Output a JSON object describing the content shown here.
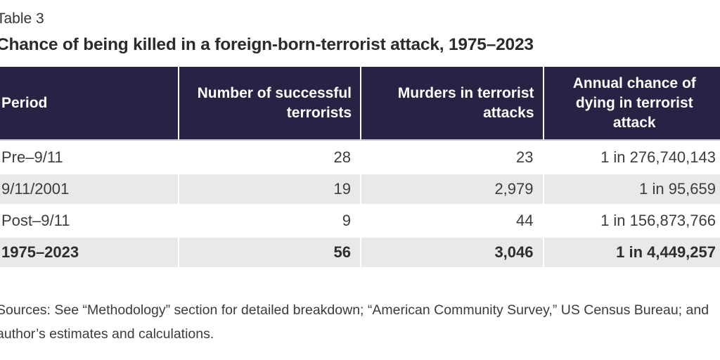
{
  "label": "Table 3",
  "title": "Chance of being killed in a foreign-born-terrorist attack, 1975–2023",
  "colors": {
    "header_bg": "#282345",
    "header_text": "#ffffff",
    "alt_row_bg": "#e9e9e9",
    "body_text": "#3c3c3c"
  },
  "chart_data": {
    "type": "table",
    "title": "Chance of being killed in a foreign-born-terrorist attack, 1975–2023",
    "columns": [
      "Period",
      "Number of successful terrorists",
      "Murders in terrorist attacks",
      "Annual chance of dying in terrorist attack"
    ],
    "rows": [
      [
        "Pre–9/11",
        "28",
        "23",
        "1 in 276,740,143"
      ],
      [
        "9/11/2001",
        "19",
        "2,979",
        "1 in 95,659"
      ],
      [
        "Post–9/11",
        "9",
        "44",
        "1 in 156,873,766"
      ],
      [
        "1975–2023",
        "56",
        "3,046",
        "1 in 4,449,257"
      ]
    ],
    "total_row": [
      "1975–2023",
      "56",
      "3,046",
      "1 in 4,449,257"
    ]
  },
  "sources_note": "Sources: See “Methodology” section for detailed breakdown; “American Community Survey,” US Census Bureau; and author’s estimates and calculations."
}
